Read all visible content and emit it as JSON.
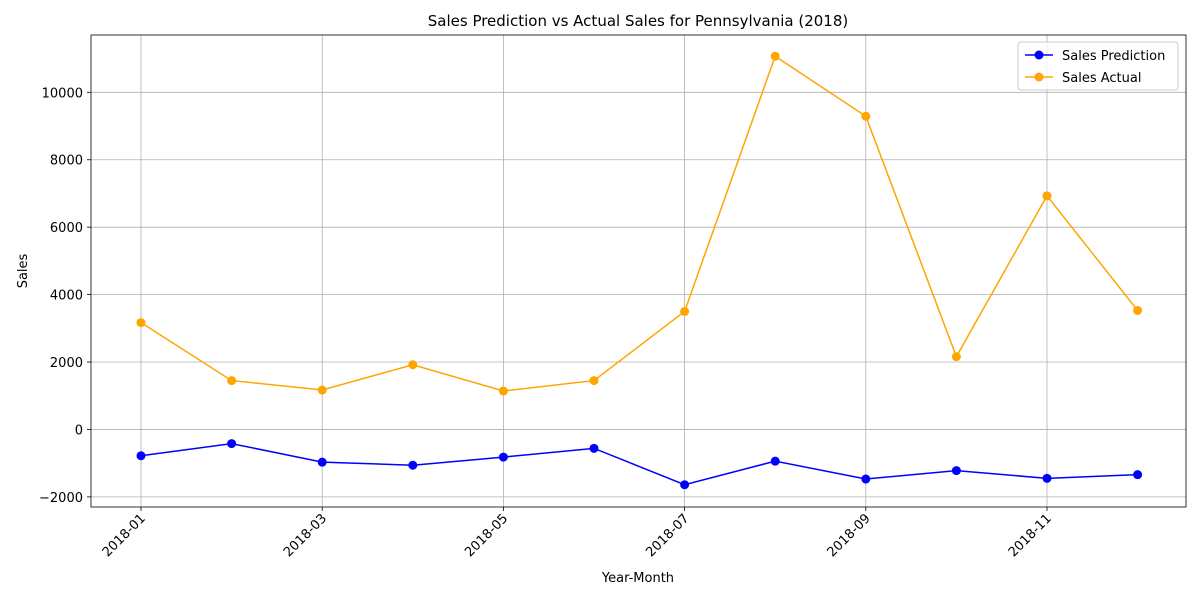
{
  "chart_data": {
    "type": "line",
    "title": "Sales Prediction vs Actual Sales for Pennsylvania (2018)",
    "xlabel": "Year-Month",
    "ylabel": "Sales",
    "x": [
      "2018-01",
      "2018-02",
      "2018-03",
      "2018-04",
      "2018-05",
      "2018-06",
      "2018-07",
      "2018-08",
      "2018-09",
      "2018-10",
      "2018-11",
      "2018-12"
    ],
    "x_tick_labels": [
      "2018-01",
      "2018-03",
      "2018-05",
      "2018-07",
      "2018-09",
      "2018-11"
    ],
    "ylim": [
      -2300,
      11700
    ],
    "y_ticks": [
      -2000,
      0,
      2000,
      4000,
      6000,
      8000,
      10000
    ],
    "y_tick_labels": [
      "−2000",
      "0",
      "2000",
      "4000",
      "6000",
      "8000",
      "10000"
    ],
    "grid": true,
    "legend_position": "top-right",
    "series": [
      {
        "name": "Sales Prediction",
        "color": "#0000ff",
        "values": [
          -780,
          -420,
          -970,
          -1060,
          -820,
          -560,
          -1640,
          -940,
          -1470,
          -1220,
          -1450,
          -1340
        ]
      },
      {
        "name": "Sales Actual",
        "color": "#ffa500",
        "values": [
          3170,
          1450,
          1170,
          1920,
          1140,
          1450,
          3500,
          11070,
          9290,
          2160,
          6930,
          3530
        ]
      }
    ]
  }
}
